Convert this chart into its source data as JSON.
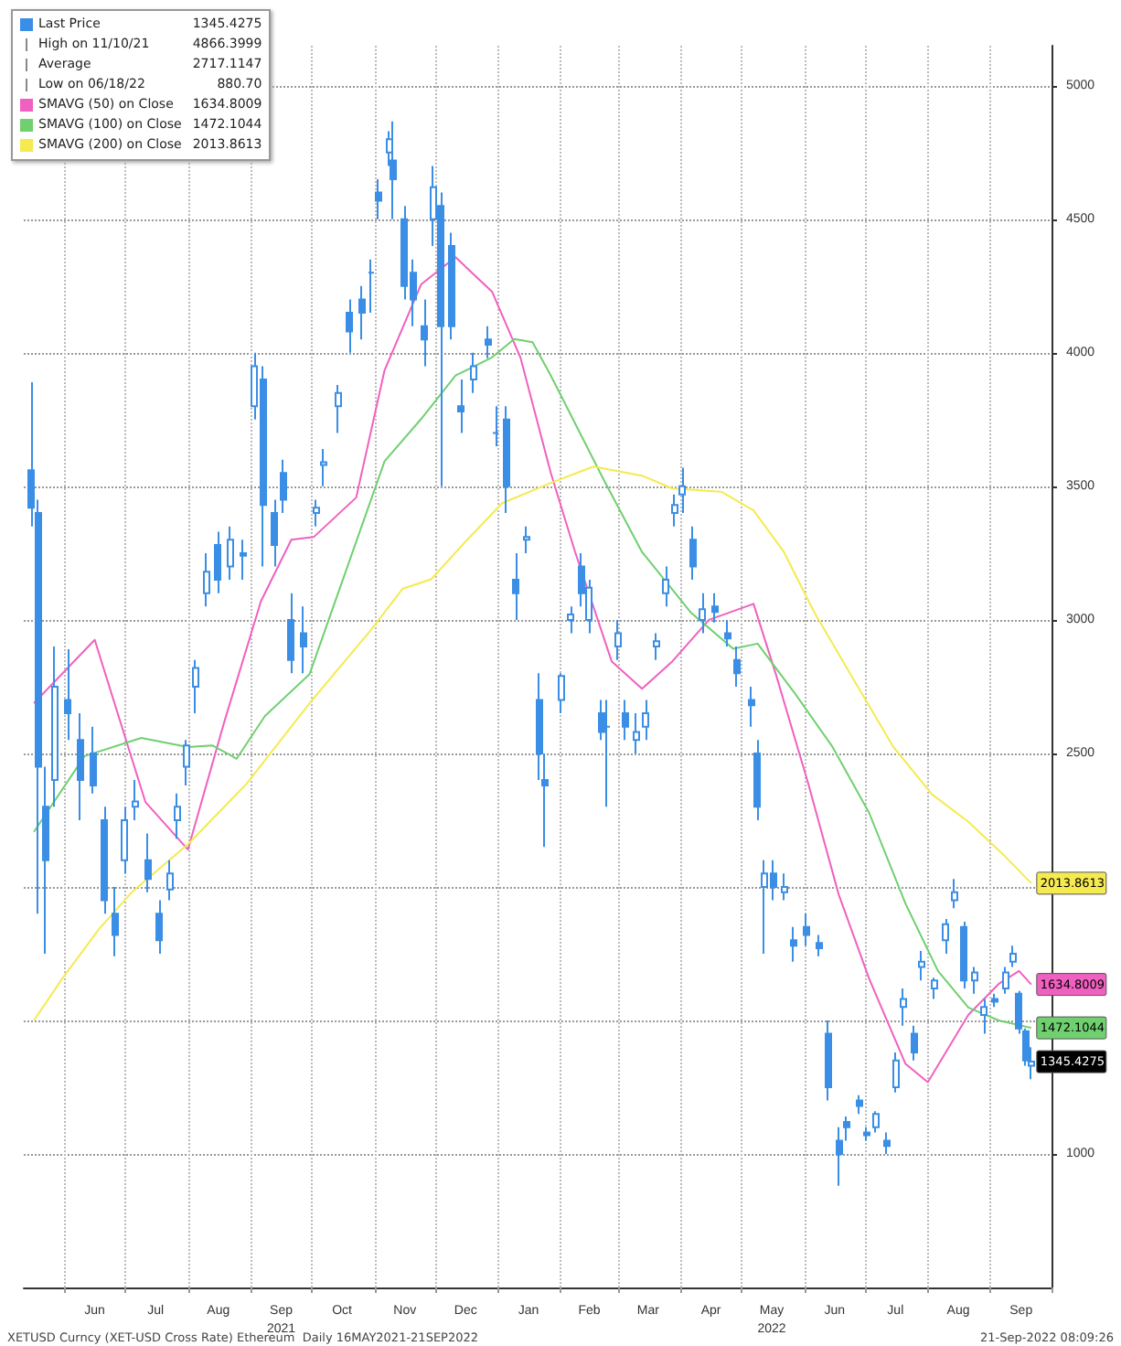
{
  "chart_data": {
    "type": "candlestick",
    "legend": "top left",
    "grid": true,
    "xlim": [
      "2021-05-12",
      "2022-10-01"
    ],
    "xticks": [
      {
        "value": "2021-06-01",
        "label": null
      },
      {
        "value": "2021-06-16",
        "label": "Jun"
      },
      {
        "value": "2021-07-01",
        "label": null
      },
      {
        "value": "2021-07-16",
        "label": "Jul"
      },
      {
        "value": "2021-08-01",
        "label": null
      },
      {
        "value": "2021-08-16",
        "label": "Aug"
      },
      {
        "value": "2021-09-01",
        "label": null
      },
      {
        "value": "2021-09-16",
        "label": "Sep\n2021"
      },
      {
        "value": "2021-10-01",
        "label": null
      },
      {
        "value": "2021-10-16",
        "label": "Oct"
      },
      {
        "value": "2021-11-01",
        "label": null
      },
      {
        "value": "2021-11-16",
        "label": "Nov"
      },
      {
        "value": "2021-12-01",
        "label": null
      },
      {
        "value": "2021-12-16",
        "label": "Dec"
      },
      {
        "value": "2022-01-01",
        "label": null
      },
      {
        "value": "2022-01-16",
        "label": "Jan"
      },
      {
        "value": "2022-02-01",
        "label": null
      },
      {
        "value": "2022-02-15",
        "label": "Feb"
      },
      {
        "value": "2022-03-01",
        "label": null
      },
      {
        "value": "2022-03-16",
        "label": "Mar"
      },
      {
        "value": "2022-04-01",
        "label": null
      },
      {
        "value": "2022-04-16",
        "label": "Apr"
      },
      {
        "value": "2022-05-01",
        "label": null
      },
      {
        "value": "2022-05-16",
        "label": "May\n2022"
      },
      {
        "value": "2022-06-01",
        "label": null
      },
      {
        "value": "2022-06-16",
        "label": "Jun"
      },
      {
        "value": "2022-07-01",
        "label": null
      },
      {
        "value": "2022-07-16",
        "label": "Jul"
      },
      {
        "value": "2022-08-01",
        "label": null
      },
      {
        "value": "2022-08-16",
        "label": "Aug"
      },
      {
        "value": "2022-09-01",
        "label": null
      },
      {
        "value": "2022-09-16",
        "label": "Sep"
      },
      {
        "value": "2022-10-01",
        "label": null
      }
    ],
    "ylim": [
      500,
      5150
    ],
    "yticks": [
      1000,
      {
        "value": 1500,
        "label": null
      },
      {
        "value": 2000,
        "label": null
      },
      2500,
      3000,
      3500,
      4000,
      4500,
      5000
    ],
    "series": [
      {
        "name": "Last Price",
        "color": "#3a8ee6",
        "value_labels": [
          null,
          null,
          null,
          null,
          null,
          null,
          null,
          null,
          null,
          null,
          null,
          null,
          null,
          null,
          null,
          null,
          null,
          null,
          null,
          null,
          null,
          null,
          null,
          null,
          null,
          null,
          null,
          null,
          null,
          null,
          null,
          null,
          null,
          null,
          null,
          null,
          null,
          null,
          null,
          null,
          null,
          null,
          null,
          null,
          null,
          null,
          null,
          null,
          null,
          null,
          null,
          null,
          null,
          null,
          null,
          null,
          null,
          null,
          null,
          null,
          null,
          null,
          null,
          null,
          null,
          null,
          null,
          null,
          null,
          null,
          null,
          null,
          null,
          null,
          null,
          null,
          null,
          null,
          null,
          null,
          null,
          null,
          null,
          null,
          null,
          null,
          null,
          null,
          null,
          null,
          null,
          null,
          null,
          null,
          null,
          null,
          null,
          null,
          null,
          null,
          "1345.4275"
        ],
        "x": [
          "2021-05-16",
          "2021-05-19",
          "2021-05-23",
          "2021-05-27",
          "2021-06-03",
          "2021-06-09",
          "2021-06-15",
          "2021-06-21",
          "2021-06-26",
          "2021-07-01",
          "2021-07-06",
          "2021-07-12",
          "2021-07-18",
          "2021-07-23",
          "2021-07-27",
          "2021-07-31",
          "2021-08-05",
          "2021-08-10",
          "2021-08-16",
          "2021-08-22",
          "2021-08-28",
          "2021-09-03",
          "2021-09-07",
          "2021-09-13",
          "2021-09-17",
          "2021-09-21",
          "2021-09-27",
          "2021-10-03",
          "2021-10-07",
          "2021-10-14",
          "2021-10-20",
          "2021-10-26",
          "2021-10-30",
          "2021-11-03",
          "2021-11-08",
          "2021-11-10",
          "2021-11-16",
          "2021-11-20",
          "2021-11-26",
          "2021-11-30",
          "2021-12-04",
          "2021-12-09",
          "2021-12-14",
          "2021-12-20",
          "2021-12-27",
          "2021-12-31",
          "2022-01-05",
          "2022-01-10",
          "2022-01-15",
          "2022-01-21",
          "2022-01-24",
          "2022-02-01",
          "2022-02-06",
          "2022-02-11",
          "2022-02-15",
          "2022-02-21",
          "2022-02-24",
          "2022-03-01",
          "2022-03-05",
          "2022-03-10",
          "2022-03-15",
          "2022-03-20",
          "2022-03-25",
          "2022-03-29",
          "2022-04-02",
          "2022-04-07",
          "2022-04-12",
          "2022-04-18",
          "2022-04-24",
          "2022-04-29",
          "2022-05-06",
          "2022-05-09",
          "2022-05-12",
          "2022-05-17",
          "2022-05-22",
          "2022-05-27",
          "2022-06-02",
          "2022-06-08",
          "2022-06-13",
          "2022-06-18",
          "2022-06-22",
          "2022-06-28",
          "2022-07-02",
          "2022-07-06",
          "2022-07-12",
          "2022-07-16",
          "2022-07-20",
          "2022-07-25",
          "2022-07-29",
          "2022-08-04",
          "2022-08-10",
          "2022-08-14",
          "2022-08-19",
          "2022-08-24",
          "2022-08-29",
          "2022-09-03",
          "2022-09-08",
          "2022-09-12",
          "2022-09-15",
          "2022-09-18",
          "2022-09-21"
        ],
        "ohlc": [
          [
            3560,
            3890,
            3350,
            3420
          ],
          [
            3400,
            3450,
            1900,
            2450
          ],
          [
            2300,
            2450,
            1750,
            2100
          ],
          [
            2400,
            2900,
            2300,
            2750
          ],
          [
            2700,
            2890,
            2550,
            2650
          ],
          [
            2550,
            2650,
            2250,
            2400
          ],
          [
            2500,
            2600,
            2350,
            2380
          ],
          [
            2250,
            2300,
            1900,
            1950
          ],
          [
            1900,
            2000,
            1740,
            1820
          ],
          [
            2100,
            2300,
            2050,
            2250
          ],
          [
            2300,
            2400,
            2250,
            2320
          ],
          [
            2100,
            2200,
            1980,
            2030
          ],
          [
            1900,
            1950,
            1750,
            1800
          ],
          [
            1990,
            2100,
            1950,
            2050
          ],
          [
            2250,
            2350,
            2180,
            2300
          ],
          [
            2450,
            2550,
            2380,
            2530
          ],
          [
            2750,
            2850,
            2650,
            2820
          ],
          [
            3100,
            3250,
            3050,
            3180
          ],
          [
            3280,
            3330,
            3100,
            3150
          ],
          [
            3200,
            3350,
            3150,
            3300
          ],
          [
            3250,
            3300,
            3150,
            3240
          ],
          [
            3800,
            4000,
            3750,
            3950
          ],
          [
            3900,
            3950,
            3200,
            3430
          ],
          [
            3400,
            3450,
            3200,
            3280
          ],
          [
            3550,
            3600,
            3400,
            3450
          ],
          [
            3000,
            3100,
            2800,
            2850
          ],
          [
            2950,
            3050,
            2800,
            2900
          ],
          [
            3400,
            3450,
            3350,
            3420
          ],
          [
            3580,
            3640,
            3500,
            3590
          ],
          [
            3800,
            3880,
            3700,
            3850
          ],
          [
            4150,
            4200,
            4000,
            4080
          ],
          [
            4200,
            4250,
            4050,
            4150
          ],
          [
            4300,
            4350,
            4150,
            4300
          ],
          [
            4600,
            4650,
            4500,
            4570
          ],
          [
            4750,
            4830,
            4700,
            4800
          ],
          [
            4720,
            4866.3999,
            4500,
            4650
          ],
          [
            4500,
            4550,
            4200,
            4250
          ],
          [
            4300,
            4350,
            4100,
            4200
          ],
          [
            4100,
            4200,
            3950,
            4050
          ],
          [
            4500,
            4700,
            4400,
            4620
          ],
          [
            4550,
            4600,
            3500,
            4100
          ],
          [
            4400,
            4450,
            4050,
            4100
          ],
          [
            3800,
            3900,
            3700,
            3780
          ],
          [
            3900,
            4000,
            3850,
            3950
          ],
          [
            4050,
            4100,
            3980,
            4030
          ],
          [
            3700,
            3800,
            3650,
            3700
          ],
          [
            3750,
            3800,
            3400,
            3500
          ],
          [
            3150,
            3250,
            3000,
            3100
          ],
          [
            3300,
            3350,
            3250,
            3310
          ],
          [
            2700,
            2800,
            2400,
            2500
          ],
          [
            2400,
            2500,
            2150,
            2380
          ],
          [
            2700,
            2800,
            2650,
            2790
          ],
          [
            3000,
            3050,
            2950,
            3020
          ],
          [
            3200,
            3250,
            3050,
            3100
          ],
          [
            3000,
            3150,
            2950,
            3120
          ],
          [
            2650,
            2700,
            2550,
            2580
          ],
          [
            2600,
            2700,
            2300,
            2600
          ],
          [
            2900,
            3000,
            2850,
            2950
          ],
          [
            2650,
            2700,
            2550,
            2600
          ],
          [
            2550,
            2650,
            2500,
            2580
          ],
          [
            2600,
            2700,
            2550,
            2650
          ],
          [
            2900,
            2950,
            2850,
            2920
          ],
          [
            3100,
            3200,
            3050,
            3150
          ],
          [
            3400,
            3470,
            3350,
            3430
          ],
          [
            3470,
            3570,
            3400,
            3500
          ],
          [
            3300,
            3350,
            3150,
            3200
          ],
          [
            3000,
            3100,
            2950,
            3040
          ],
          [
            3050,
            3100,
            2990,
            3030
          ],
          [
            2950,
            3000,
            2900,
            2930
          ],
          [
            2850,
            2900,
            2750,
            2800
          ],
          [
            2700,
            2750,
            2600,
            2680
          ],
          [
            2500,
            2550,
            2250,
            2300
          ],
          [
            2000,
            2100,
            1750,
            2050
          ],
          [
            2050,
            2100,
            1950,
            2000
          ],
          [
            1980,
            2050,
            1950,
            2000
          ],
          [
            1800,
            1850,
            1720,
            1780
          ],
          [
            1850,
            1900,
            1780,
            1820
          ],
          [
            1790,
            1820,
            1740,
            1770
          ],
          [
            1450,
            1500,
            1200,
            1250
          ],
          [
            1050,
            1100,
            880.7,
            1000
          ],
          [
            1120,
            1140,
            1050,
            1100
          ],
          [
            1200,
            1220,
            1150,
            1180
          ],
          [
            1080,
            1100,
            1050,
            1070
          ],
          [
            1100,
            1160,
            1080,
            1150
          ],
          [
            1050,
            1080,
            1000,
            1030
          ],
          [
            1250,
            1380,
            1230,
            1350
          ],
          [
            1550,
            1620,
            1480,
            1580
          ],
          [
            1450,
            1480,
            1350,
            1380
          ],
          [
            1700,
            1760,
            1650,
            1720
          ],
          [
            1620,
            1660,
            1580,
            1650
          ],
          [
            1800,
            1880,
            1750,
            1860
          ],
          [
            1950,
            2030,
            1920,
            1980
          ],
          [
            1850,
            1870,
            1620,
            1650
          ],
          [
            1650,
            1700,
            1600,
            1680
          ],
          [
            1520,
            1580,
            1450,
            1550
          ],
          [
            1580,
            1600,
            1550,
            1570
          ],
          [
            1620,
            1700,
            1600,
            1680
          ],
          [
            1720,
            1780,
            1700,
            1750
          ],
          [
            1600,
            1610,
            1450,
            1470
          ],
          [
            1460,
            1470,
            1330,
            1350
          ],
          [
            1330,
            1400,
            1280,
            1345.4275
          ]
        ]
      },
      {
        "name": "SMAVG (50) on Close",
        "type": "line",
        "color": "#f060c0",
        "x": [
          "2021-05-17",
          "2021-06-16",
          "2021-07-11",
          "2021-08-01",
          "2021-08-19",
          "2021-09-06",
          "2021-09-21",
          "2021-10-02",
          "2021-10-23",
          "2021-11-06",
          "2021-11-24",
          "2021-12-11",
          "2021-12-29",
          "2022-01-12",
          "2022-01-27",
          "2022-02-08",
          "2022-02-26",
          "2022-03-13",
          "2022-03-28",
          "2022-04-15",
          "2022-05-07",
          "2022-05-18",
          "2022-06-03",
          "2022-06-18",
          "2022-07-03",
          "2022-07-21",
          "2022-08-01",
          "2022-08-21",
          "2022-09-05",
          "2022-09-15",
          "2022-09-21"
        ],
        "values": [
          2688,
          2925,
          2318,
          2140,
          2620,
          3070,
          3300,
          3310,
          3458,
          3935,
          4256,
          4358,
          4229,
          3983,
          3550,
          3254,
          2845,
          2742,
          2845,
          3000,
          3060,
          2797,
          2387,
          1972,
          1657,
          1337,
          1269,
          1521,
          1637,
          1685,
          1634.8009
        ],
        "value_labels": [
          null,
          null,
          null,
          null,
          null,
          null,
          null,
          null,
          null,
          null,
          null,
          null,
          null,
          null,
          null,
          null,
          null,
          null,
          null,
          null,
          null,
          null,
          null,
          null,
          null,
          null,
          null,
          null,
          null,
          null,
          "1634.8009"
        ]
      },
      {
        "name": "SMAVG (100) on Close",
        "type": "line",
        "color": "#70d070",
        "x": [
          "2021-05-17",
          "2021-06-11",
          "2021-07-09",
          "2021-08-01",
          "2021-08-13",
          "2021-08-25",
          "2021-09-08",
          "2021-09-30",
          "2021-10-18",
          "2021-11-06",
          "2021-11-24",
          "2021-12-11",
          "2021-12-29",
          "2022-01-09",
          "2022-01-18",
          "2022-01-27",
          "2022-02-22",
          "2022-03-13",
          "2022-04-06",
          "2022-04-27",
          "2022-05-09",
          "2022-05-27",
          "2022-06-15",
          "2022-07-03",
          "2022-07-21",
          "2022-08-06",
          "2022-08-21",
          "2022-09-05",
          "2022-09-21"
        ],
        "values": [
          2206,
          2490,
          2558,
          2524,
          2530,
          2480,
          2640,
          2797,
          3185,
          3594,
          3752,
          3915,
          3983,
          4052,
          4040,
          3915,
          3526,
          3254,
          3028,
          2892,
          2911,
          2729,
          2524,
          2278,
          1937,
          1685,
          1548,
          1500,
          1472.1044
        ],
        "value_labels": [
          null,
          null,
          null,
          null,
          null,
          null,
          null,
          null,
          null,
          null,
          null,
          null,
          null,
          null,
          null,
          null,
          null,
          null,
          null,
          null,
          null,
          null,
          null,
          null,
          null,
          null,
          null,
          null,
          "1472.1044"
        ]
      },
      {
        "name": "SMAVG (200) on Close",
        "type": "line",
        "color": "#f5ea50",
        "x": [
          "2021-05-17",
          "2021-05-31",
          "2021-06-18",
          "2021-07-04",
          "2021-08-01",
          "2021-08-30",
          "2021-09-30",
          "2021-10-30",
          "2021-11-15",
          "2021-11-29",
          "2021-12-17",
          "2022-01-03",
          "2022-01-27",
          "2022-02-17",
          "2022-03-13",
          "2022-03-28",
          "2022-04-21",
          "2022-05-07",
          "2022-05-22",
          "2022-06-06",
          "2022-06-27",
          "2022-07-15",
          "2022-08-03",
          "2022-08-21",
          "2022-09-08",
          "2022-09-21"
        ],
        "values": [
          1500,
          1657,
          1841,
          1978,
          2160,
          2387,
          2688,
          2960,
          3117,
          3152,
          3302,
          3437,
          3513,
          3574,
          3540,
          3492,
          3480,
          3410,
          3254,
          3028,
          2756,
          2524,
          2347,
          2244,
          2115,
          2013.8613
        ],
        "value_labels": [
          null,
          null,
          null,
          null,
          null,
          null,
          null,
          null,
          null,
          null,
          null,
          null,
          null,
          null,
          null,
          null,
          null,
          null,
          null,
          null,
          null,
          null,
          null,
          null,
          null,
          "2013.8613"
        ]
      }
    ],
    "annotations": [
      "High on 11/10/21 4866.3999",
      "Average 2717.1147",
      "Low on 06/18/22 880.70",
      "XETUSD Curncy (XET-USD Cross Rate) Ethereum  Daily 16MAY2021-21SEP2022",
      "21-Sep-2022 08:09:26"
    ]
  }
}
